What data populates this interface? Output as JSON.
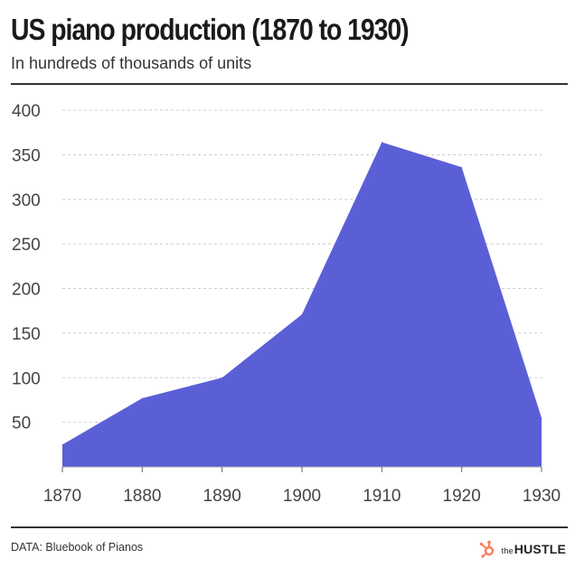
{
  "header": {
    "title": "US piano production (1870 to 1930)",
    "subtitle": "In hundreds of thousands of units"
  },
  "footer": {
    "source": "DATA: Bluebook of Pianos",
    "brand_prefix": "the",
    "brand_name": "HUSTLE"
  },
  "colors": {
    "area": "#5b5fd6",
    "grid": "#cccccc",
    "brand_accent": "#ff7a59"
  },
  "icons": {
    "brand": "hubspot-sprocket-icon"
  },
  "chart_data": {
    "type": "area",
    "title": "US piano production (1870 to 1930)",
    "subtitle": "In hundreds of thousands of units",
    "x": [
      1870,
      1880,
      1890,
      1900,
      1910,
      1920,
      1930
    ],
    "series": [
      {
        "values": [
          25,
          77,
          100,
          171,
          364,
          336,
          55
        ]
      }
    ],
    "x_ticks": [
      "1870",
      "1880",
      "1890",
      "1900",
      "1910",
      "1920",
      "1930"
    ],
    "y_ticks": [
      "400",
      "350",
      "300",
      "250",
      "200",
      "150",
      "100",
      "50"
    ],
    "ylim": [
      0,
      400
    ],
    "xlim": [
      1870,
      1930
    ],
    "grid": "horizontal dashed",
    "legend": "none"
  }
}
